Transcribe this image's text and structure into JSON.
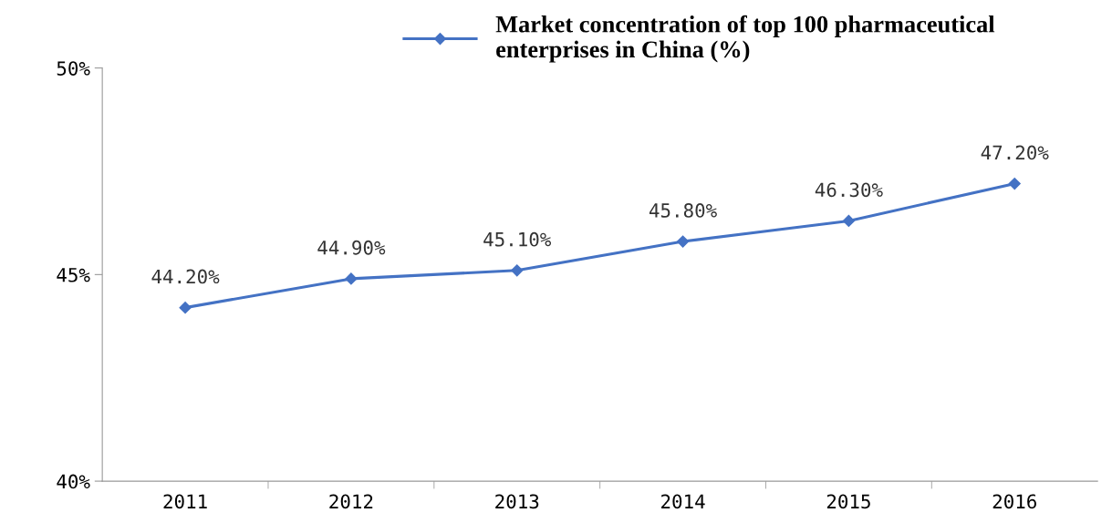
{
  "chart_data": {
    "type": "line",
    "categories": [
      "2011",
      "2012",
      "2013",
      "2014",
      "2015",
      "2016"
    ],
    "series": [
      {
        "name": "Market concentration of top 100 pharmaceutical enterprises in China (%)",
        "color": "#4472c4",
        "values": [
          44.2,
          44.9,
          45.1,
          45.8,
          46.3,
          47.2
        ],
        "value_labels": [
          "44.20%",
          "44.90%",
          "45.10%",
          "45.80%",
          "46.30%",
          "47.20%"
        ]
      }
    ],
    "ylim": [
      40,
      50
    ],
    "yticks": [
      {
        "value": 40,
        "label": "40%"
      },
      {
        "value": 45,
        "label": "45%"
      },
      {
        "value": 50,
        "label": "50%"
      }
    ],
    "marker": "diamond",
    "line_style": "solid",
    "grid": false,
    "legend": "top"
  }
}
